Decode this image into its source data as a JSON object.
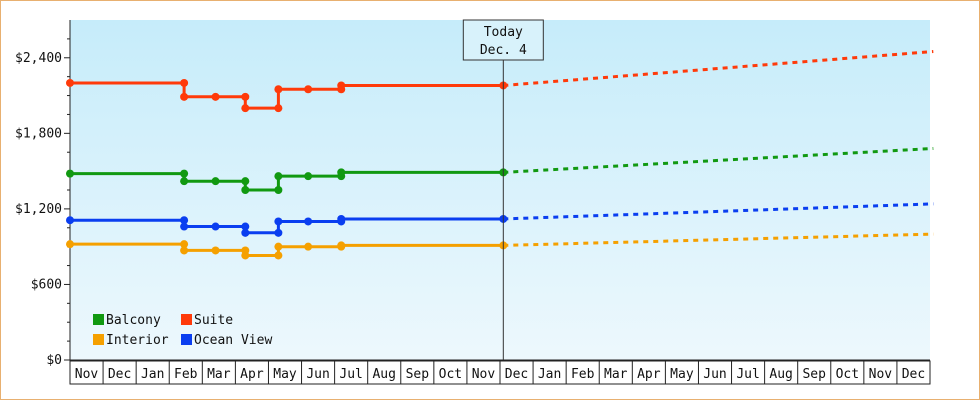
{
  "chart_data": {
    "type": "line",
    "title": "",
    "xlabel": "",
    "ylabel": "",
    "ylim": [
      0,
      2700
    ],
    "y_ticks": [
      {
        "value": 0,
        "label": "$0"
      },
      {
        "value": 600,
        "label": "$600"
      },
      {
        "value": 1200,
        "label": "$1,200"
      },
      {
        "value": 1800,
        "label": "$1,800"
      },
      {
        "value": 2400,
        "label": "$2,400"
      }
    ],
    "x_month_labels": [
      "Nov",
      "Dec",
      "Jan",
      "Feb",
      "Mar",
      "Apr",
      "May",
      "Jun",
      "Jul",
      "Aug",
      "Sep",
      "Oct",
      "Nov",
      "Dec",
      "Jan",
      "Feb",
      "Mar",
      "Apr",
      "May",
      "Jun",
      "Jul",
      "Aug",
      "Sep",
      "Oct",
      "Nov",
      "Dec"
    ],
    "today": {
      "line1": "Today",
      "line2": "Dec. 4",
      "x": 13.1
    },
    "grid": false,
    "legend_position": "bottom-left",
    "series": [
      {
        "name": "Suite",
        "color": "#ff3a0a",
        "points": [
          [
            0,
            2200
          ],
          [
            3.45,
            2200
          ],
          [
            3.45,
            2090
          ],
          [
            4.4,
            2090
          ],
          [
            5.3,
            2090
          ],
          [
            5.3,
            2000
          ],
          [
            6.3,
            2000
          ],
          [
            6.3,
            2150
          ],
          [
            7.2,
            2150
          ],
          [
            8.2,
            2150
          ],
          [
            8.2,
            2180
          ],
          [
            13.1,
            2180
          ]
        ],
        "markers": [
          [
            0,
            2200
          ],
          [
            3.45,
            2200
          ],
          [
            3.45,
            2090
          ],
          [
            4.4,
            2090
          ],
          [
            5.3,
            2090
          ],
          [
            5.3,
            2000
          ],
          [
            6.3,
            2000
          ],
          [
            6.3,
            2150
          ],
          [
            7.2,
            2150
          ],
          [
            8.2,
            2150
          ],
          [
            8.2,
            2180
          ],
          [
            13.1,
            2180
          ]
        ],
        "forecast": [
          [
            13.1,
            2180
          ],
          [
            26.1,
            2450
          ]
        ]
      },
      {
        "name": "Balcony",
        "color": "#119911",
        "points": [
          [
            0,
            1480
          ],
          [
            3.45,
            1480
          ],
          [
            3.45,
            1420
          ],
          [
            4.4,
            1420
          ],
          [
            5.3,
            1420
          ],
          [
            5.3,
            1350
          ],
          [
            6.3,
            1350
          ],
          [
            6.3,
            1460
          ],
          [
            7.2,
            1460
          ],
          [
            8.2,
            1460
          ],
          [
            8.2,
            1490
          ],
          [
            13.1,
            1490
          ]
        ],
        "markers": [
          [
            0,
            1480
          ],
          [
            3.45,
            1480
          ],
          [
            3.45,
            1420
          ],
          [
            4.4,
            1420
          ],
          [
            5.3,
            1420
          ],
          [
            5.3,
            1350
          ],
          [
            6.3,
            1350
          ],
          [
            6.3,
            1460
          ],
          [
            7.2,
            1460
          ],
          [
            8.2,
            1460
          ],
          [
            8.2,
            1490
          ],
          [
            13.1,
            1490
          ]
        ],
        "forecast": [
          [
            13.1,
            1490
          ],
          [
            26.1,
            1680
          ]
        ]
      },
      {
        "name": "Ocean View",
        "color": "#0a3ef0",
        "points": [
          [
            0,
            1110
          ],
          [
            3.45,
            1110
          ],
          [
            3.45,
            1060
          ],
          [
            4.4,
            1060
          ],
          [
            5.3,
            1060
          ],
          [
            5.3,
            1010
          ],
          [
            6.3,
            1010
          ],
          [
            6.3,
            1100
          ],
          [
            7.2,
            1100
          ],
          [
            8.2,
            1100
          ],
          [
            8.2,
            1120
          ],
          [
            13.1,
            1120
          ]
        ],
        "markers": [
          [
            0,
            1110
          ],
          [
            3.45,
            1110
          ],
          [
            3.45,
            1060
          ],
          [
            4.4,
            1060
          ],
          [
            5.3,
            1060
          ],
          [
            5.3,
            1010
          ],
          [
            6.3,
            1010
          ],
          [
            6.3,
            1100
          ],
          [
            7.2,
            1100
          ],
          [
            8.2,
            1100
          ],
          [
            8.2,
            1120
          ],
          [
            13.1,
            1120
          ]
        ],
        "forecast": [
          [
            13.1,
            1120
          ],
          [
            26.1,
            1240
          ]
        ]
      },
      {
        "name": "Interior",
        "color": "#f5a000",
        "points": [
          [
            0,
            920
          ],
          [
            3.45,
            920
          ],
          [
            3.45,
            870
          ],
          [
            4.4,
            870
          ],
          [
            5.3,
            870
          ],
          [
            5.3,
            830
          ],
          [
            6.3,
            830
          ],
          [
            6.3,
            900
          ],
          [
            7.2,
            900
          ],
          [
            8.2,
            900
          ],
          [
            8.2,
            910
          ],
          [
            13.1,
            910
          ]
        ],
        "markers": [
          [
            0,
            920
          ],
          [
            3.45,
            920
          ],
          [
            3.45,
            870
          ],
          [
            4.4,
            870
          ],
          [
            5.3,
            870
          ],
          [
            5.3,
            830
          ],
          [
            6.3,
            830
          ],
          [
            6.3,
            900
          ],
          [
            7.2,
            900
          ],
          [
            8.2,
            900
          ],
          [
            8.2,
            910
          ],
          [
            13.1,
            910
          ]
        ],
        "forecast": [
          [
            13.1,
            910
          ],
          [
            26.1,
            1000
          ]
        ]
      }
    ],
    "legend": [
      {
        "name": "Balcony",
        "color": "#119911"
      },
      {
        "name": "Suite",
        "color": "#ff3a0a"
      },
      {
        "name": "Interior",
        "color": "#f5a000"
      },
      {
        "name": "Ocean View",
        "color": "#0a3ef0"
      }
    ]
  }
}
